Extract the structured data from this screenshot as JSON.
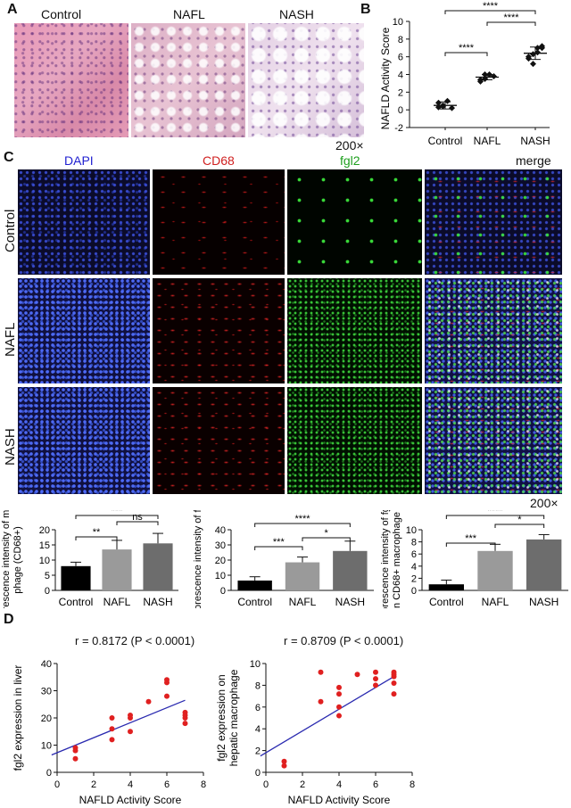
{
  "panel_A": {
    "letter": "A",
    "labels": [
      "Control",
      "NAFL",
      "NASH"
    ],
    "magnification": "200×"
  },
  "panel_B": {
    "letter": "B",
    "ylabel": "NAFLD Activity Score",
    "sig": [
      "****",
      "****",
      "****"
    ]
  },
  "panel_C": {
    "letter": "C",
    "channels": [
      {
        "label": "DAPI",
        "color": "#1f1fd0"
      },
      {
        "label": "CD68",
        "color": "#d01f1f"
      },
      {
        "label": "fgl2",
        "color": "#1fa01f"
      },
      {
        "label": "merge",
        "color": "#111111"
      }
    ],
    "rows": [
      "Control",
      "NAFL",
      "NASH"
    ],
    "magnification": "200×"
  },
  "panel_D": {
    "letter": "D",
    "stat1": "r = 0.8172 (P < 0.0001)",
    "stat2": "r = 0.8709 (P < 0.0001)"
  },
  "chart_data": [
    {
      "type": "scatter",
      "title": "",
      "xlabel": "",
      "ylabel": "NAFLD Activity Score",
      "categories": [
        "Control",
        "NAFL",
        "NASH"
      ],
      "ylim": [
        -2,
        10
      ],
      "yticks": [
        -2,
        0,
        2,
        4,
        6,
        8,
        10
      ],
      "series": [
        {
          "category": "Control",
          "points": [
            0.3,
            0.5,
            1.0,
            0.2,
            0.8,
            0.4
          ],
          "mean": 0.5,
          "sd": 0.4
        },
        {
          "category": "NAFL",
          "points": [
            3.2,
            3.5,
            4.0,
            3.8,
            3.4,
            4.0
          ],
          "mean": 3.7,
          "sd": 0.3
        },
        {
          "category": "NASH",
          "points": [
            5.8,
            6.3,
            7.0,
            7.2,
            6.0,
            5.2,
            6.5,
            7.0
          ],
          "mean": 6.4,
          "sd": 0.7
        }
      ],
      "significance": [
        {
          "pair": [
            "Control",
            "NAFL"
          ],
          "label": "****"
        },
        {
          "pair": [
            "NAFL",
            "NASH"
          ],
          "label": "****"
        },
        {
          "pair": [
            "Control",
            "NASH"
          ],
          "label": "****"
        }
      ]
    },
    {
      "type": "bar",
      "ylabel": "Fluorescence intensity of macrophage (CD68+)",
      "categories": [
        "Control",
        "NAFL",
        "NASH"
      ],
      "values": [
        8.0,
        13.5,
        15.5
      ],
      "errors": [
        1.3,
        3.0,
        3.3
      ],
      "colors": [
        "#000000",
        "#9a9a9a",
        "#6d6d6d"
      ],
      "ylim": [
        0,
        20
      ],
      "yticks": [
        0,
        5,
        10,
        15,
        20
      ],
      "significance": [
        {
          "pair": [
            "Control",
            "NAFL"
          ],
          "label": "**"
        },
        {
          "pair": [
            "NAFL",
            "NASH"
          ],
          "label": "ns"
        },
        {
          "pair": [
            "Control",
            "NASH"
          ],
          "label": "***"
        }
      ]
    },
    {
      "type": "bar",
      "ylabel": "Fluorescence intensity of fgl2",
      "categories": [
        "Control",
        "NAFL",
        "NASH"
      ],
      "values": [
        6.5,
        18.5,
        26.0
      ],
      "errors": [
        2.5,
        3.5,
        6.5
      ],
      "colors": [
        "#000000",
        "#9a9a9a",
        "#6d6d6d"
      ],
      "ylim": [
        0,
        40
      ],
      "yticks": [
        0,
        10,
        20,
        30,
        40
      ],
      "significance": [
        {
          "pair": [
            "Control",
            "NAFL"
          ],
          "label": "***"
        },
        {
          "pair": [
            "NAFL",
            "NASH"
          ],
          "label": "*"
        },
        {
          "pair": [
            "Control",
            "NASH"
          ],
          "label": "****"
        }
      ]
    },
    {
      "type": "bar",
      "ylabel": "Fluorescence intensity of fgl2 in CD68+ macrophage",
      "categories": [
        "Control",
        "NAFL",
        "NASH"
      ],
      "values": [
        1.0,
        6.5,
        8.4
      ],
      "errors": [
        0.7,
        1.1,
        0.8
      ],
      "colors": [
        "#000000",
        "#9a9a9a",
        "#6d6d6d"
      ],
      "ylim": [
        0,
        10
      ],
      "yticks": [
        0,
        2,
        4,
        6,
        8,
        10
      ],
      "significance": [
        {
          "pair": [
            "Control",
            "NAFL"
          ],
          "label": "***"
        },
        {
          "pair": [
            "NAFL",
            "NASH"
          ],
          "label": "*"
        },
        {
          "pair": [
            "Control",
            "NASH"
          ],
          "label": "****"
        }
      ]
    },
    {
      "type": "scatter",
      "title": "r = 0.8172 (P < 0.0001)",
      "xlabel": "NAFLD Activity Score",
      "ylabel": "fgl2 expression in liver",
      "xlim": [
        0,
        8
      ],
      "ylim": [
        0,
        40
      ],
      "xticks": [
        0,
        2,
        4,
        6,
        8
      ],
      "yticks": [
        0,
        10,
        20,
        30,
        40
      ],
      "points": [
        [
          1,
          8
        ],
        [
          1,
          9
        ],
        [
          1,
          5
        ],
        [
          3,
          20
        ],
        [
          3,
          12
        ],
        [
          3,
          16
        ],
        [
          4,
          21
        ],
        [
          4,
          20
        ],
        [
          4,
          15
        ],
        [
          5,
          26
        ],
        [
          6,
          34
        ],
        [
          6,
          33
        ],
        [
          6,
          28
        ],
        [
          7,
          22
        ],
        [
          7,
          20
        ],
        [
          7,
          18
        ],
        [
          7,
          21
        ]
      ],
      "fit": [
        [
          -0.3,
          6.4
        ],
        [
          7,
          26.5
        ]
      ],
      "color": "#e02020",
      "line_color": "#2a2ab0"
    },
    {
      "type": "scatter",
      "title": "r = 0.8709 (P < 0.0001)",
      "xlabel": "NAFLD Activity Score",
      "ylabel": "fgl2 expression on hepatic macrophage",
      "xlim": [
        0,
        8
      ],
      "ylim": [
        0,
        10
      ],
      "xticks": [
        0,
        2,
        4,
        6,
        8
      ],
      "yticks": [
        0,
        2,
        4,
        6,
        8,
        10
      ],
      "points": [
        [
          1,
          1.0
        ],
        [
          1,
          0.6
        ],
        [
          3,
          9.2
        ],
        [
          3,
          6.5
        ],
        [
          4,
          7.8
        ],
        [
          4,
          7.2
        ],
        [
          4,
          6.0
        ],
        [
          4,
          5.2
        ],
        [
          5,
          9.0
        ],
        [
          6,
          9.2
        ],
        [
          6,
          8.6
        ],
        [
          6,
          8.0
        ],
        [
          7,
          9.2
        ],
        [
          7,
          8.8
        ],
        [
          7,
          8.2
        ],
        [
          7,
          7.2
        ],
        [
          7,
          9.0
        ]
      ],
      "fit": [
        [
          -0.3,
          1.5
        ],
        [
          7,
          8.8
        ]
      ],
      "color": "#e02020",
      "line_color": "#2a2ab0"
    }
  ]
}
